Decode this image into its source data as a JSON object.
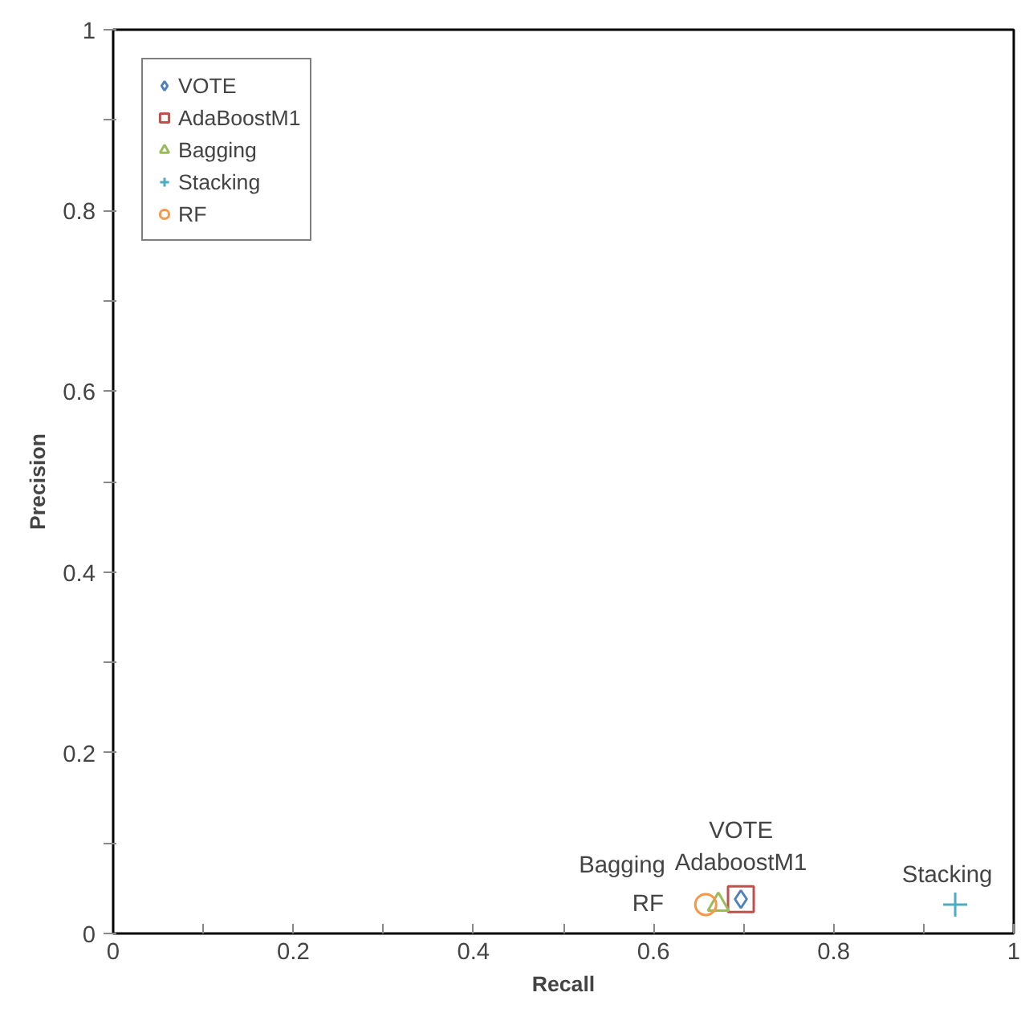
{
  "chart_data": {
    "type": "scatter",
    "xlabel": "Recall",
    "ylabel": "Precision",
    "xlim": [
      0,
      1
    ],
    "ylim": [
      0,
      1
    ],
    "xticks": [
      0,
      {
        "value": 0.1,
        "label": null
      },
      0.2,
      {
        "value": 0.3,
        "label": null
      },
      0.4,
      {
        "value": 0.5,
        "label": null
      },
      0.6,
      {
        "value": 0.7,
        "label": null
      },
      0.8,
      {
        "value": 0.9,
        "label": null
      },
      1
    ],
    "yticks": [
      0,
      {
        "value": 0.1,
        "label": null
      },
      0.2,
      {
        "value": 0.3,
        "label": null
      },
      0.4,
      {
        "value": 0.5,
        "label": null
      },
      0.6,
      {
        "value": 0.7,
        "label": null
      },
      0.8,
      {
        "value": 0.9,
        "label": null
      },
      1
    ],
    "grid": false,
    "legend": "top left",
    "series": [
      {
        "name": "VOTE",
        "color": "#4f81bd",
        "marker": "diamond",
        "x": [
          0.697
        ],
        "values": [
          0.038
        ]
      },
      {
        "name": "AdaBoostM1",
        "color": "#c0504d",
        "marker": "square",
        "x": [
          0.697
        ],
        "values": [
          0.038
        ]
      },
      {
        "name": "Bagging",
        "color": "#9bbb59",
        "marker": "triangle",
        "x": [
          0.672
        ],
        "values": [
          0.032
        ]
      },
      {
        "name": "Stacking",
        "color": "#4bacc6",
        "marker": "cross",
        "x": [
          0.935
        ],
        "values": [
          0.032
        ]
      },
      {
        "name": "RF",
        "color": "#f79646",
        "marker": "circle",
        "x": [
          0.658
        ],
        "values": [
          0.032
        ]
      }
    ],
    "annotations": [
      {
        "text": "VOTE",
        "x": 0.697,
        "y": 0.038
      },
      {
        "text": "AdaboostM1",
        "x": 0.697,
        "y": 0.038
      },
      {
        "text": "Bagging",
        "x": 0.672,
        "y": 0.032
      },
      {
        "text": "RF",
        "x": 0.658,
        "y": 0.032
      },
      {
        "text": "Stacking",
        "x": 0.935,
        "y": 0.032
      }
    ]
  }
}
